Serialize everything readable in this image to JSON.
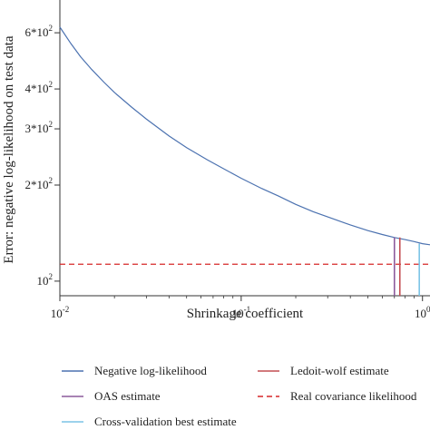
{
  "chart_data": {
    "type": "line",
    "xlabel": "Shrinkage coefficient",
    "ylabel": "Error: negative log-likelihood on test data",
    "xscale": "log",
    "yscale": "log",
    "xlim": [
      0.01,
      1.1
    ],
    "ylim": [
      90,
      760
    ],
    "x_ticks": [
      {
        "value": 0.01,
        "label": "10^-2"
      },
      {
        "value": 0.1,
        "label": "10^-1"
      },
      {
        "value": 1,
        "label": "10^0"
      }
    ],
    "y_ticks": [
      {
        "value": 100,
        "label": "10^2"
      },
      {
        "value": 200,
        "label": "2*10^2"
      },
      {
        "value": 300,
        "label": "3*10^2"
      },
      {
        "value": 400,
        "label": "4*10^2"
      },
      {
        "value": 600,
        "label": "6*10^2"
      }
    ],
    "series": [
      {
        "name": "Negative log-likelihood",
        "color": "#4c72b0",
        "x": [
          0.01,
          0.0115,
          0.013,
          0.015,
          0.0175,
          0.02,
          0.025,
          0.03,
          0.04,
          0.05,
          0.065,
          0.08,
          0.1,
          0.13,
          0.16,
          0.2,
          0.25,
          0.3,
          0.4,
          0.5,
          0.6,
          0.7,
          0.8,
          0.9,
          1.0,
          1.1
        ],
        "y": [
          625,
          555,
          505,
          460,
          420,
          390,
          350,
          322,
          285,
          262,
          240,
          225,
          210,
          195,
          185,
          174,
          165,
          159,
          150,
          144,
          140,
          137,
          135,
          133,
          131,
          130
        ]
      }
    ],
    "vlines": [
      {
        "name": "Ledoit-wolf estimate",
        "x": 0.75,
        "y_top": 137,
        "color": "#c44e52",
        "style": "solid"
      },
      {
        "name": "OAS estimate",
        "x": 0.7,
        "y_top": 137,
        "color": "#8c5a9c",
        "style": "solid"
      },
      {
        "name": "Cross-validation best estimate",
        "x": 0.96,
        "y_top": 131,
        "color": "#7cc4e6",
        "style": "solid"
      }
    ],
    "hlines": [
      {
        "name": "Real covariance likelihood",
        "y": 113,
        "color": "#d62728",
        "style": "dashed"
      }
    ],
    "legend": {
      "placement": "bottom",
      "entries": [
        {
          "label": "Negative log-likelihood",
          "color": "#4c72b0",
          "style": "solid"
        },
        {
          "label": "Ledoit-wolf estimate",
          "color": "#c44e52",
          "style": "solid"
        },
        {
          "label": "OAS estimate",
          "color": "#8c5a9c",
          "style": "solid"
        },
        {
          "label": "Real covariance likelihood",
          "color": "#d62728",
          "style": "dashed"
        },
        {
          "label": "Cross-validation best estimate",
          "color": "#7cc4e6",
          "style": "solid"
        }
      ]
    }
  }
}
